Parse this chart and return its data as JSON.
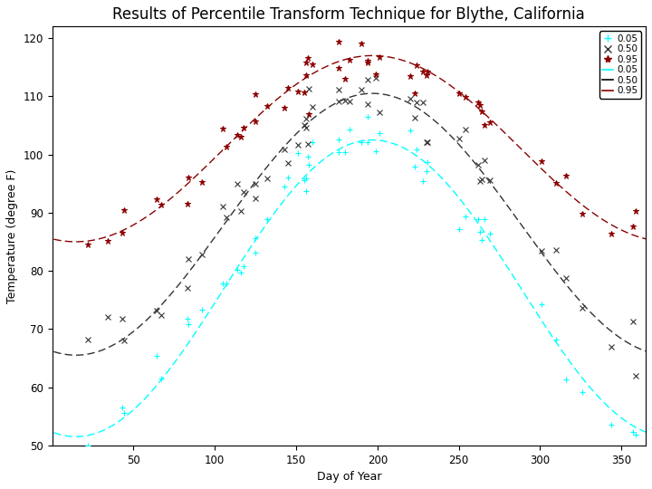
{
  "title": "Results of Percentile Transform Technique for Blythe, California",
  "xlabel": "Day of Year",
  "ylabel": "Temperature (degree F)",
  "xlim": [
    0,
    365
  ],
  "ylim": [
    50,
    122
  ],
  "yticks": [
    50,
    60,
    70,
    80,
    90,
    100,
    110,
    120
  ],
  "xticks": [
    50,
    100,
    150,
    200,
    250,
    300,
    350
  ],
  "sine_params": {
    "p05": {
      "mean": 77.0,
      "amplitude": 25.5,
      "phase_shift": -75
    },
    "p50": {
      "mean": 88.0,
      "amplitude": 22.5,
      "phase_shift": -75
    },
    "p95": {
      "mean": 101.0,
      "amplitude": 16.0,
      "phase_shift": -75
    }
  },
  "scatter_noise": 2.5,
  "scatter_count": 55,
  "background": "white",
  "p05_color": "cyan",
  "p50_color": "#333333",
  "p95_color": "#8B0000"
}
